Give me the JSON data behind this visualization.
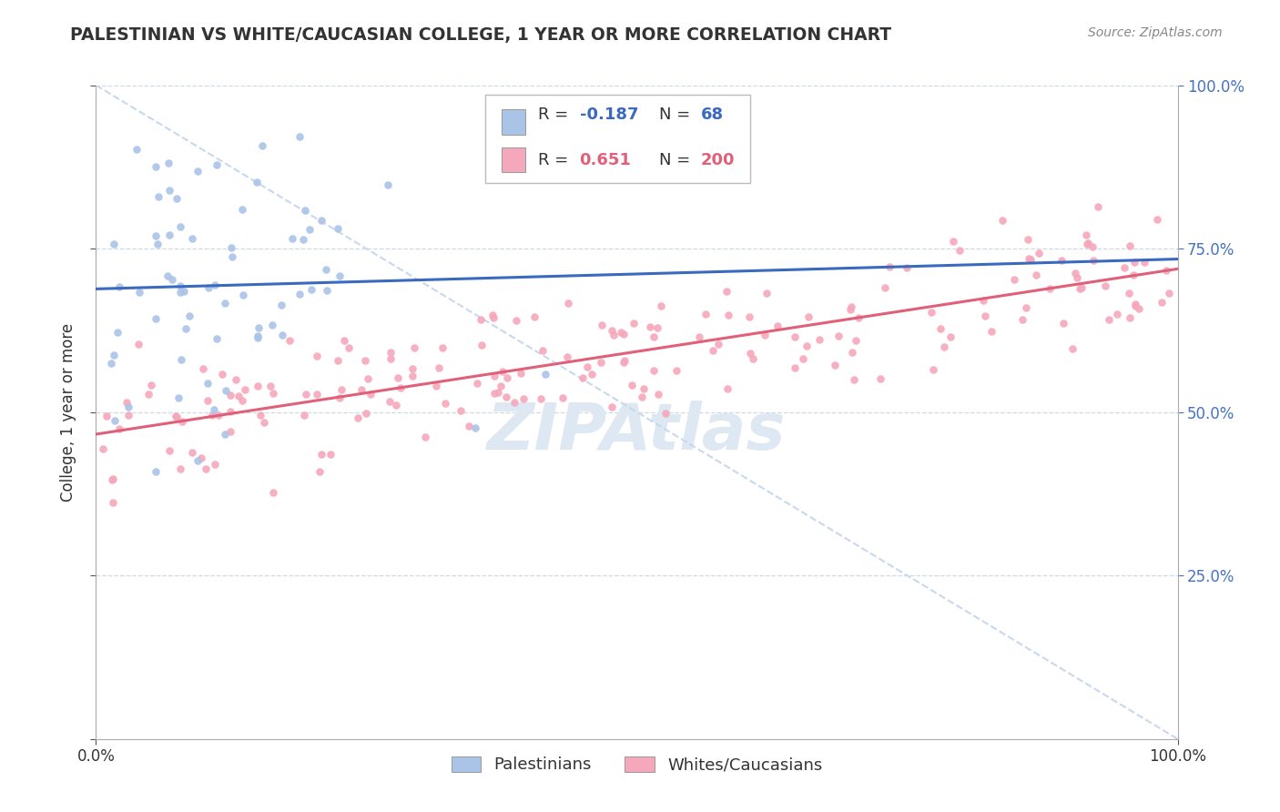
{
  "title": "PALESTINIAN VS WHITE/CAUCASIAN COLLEGE, 1 YEAR OR MORE CORRELATION CHART",
  "source_text": "Source: ZipAtlas.com",
  "ylabel": "College, 1 year or more",
  "legend_r1": "-0.187",
  "legend_n1": "68",
  "legend_r2": "0.651",
  "legend_n2": "200",
  "blue_color": "#aac4e8",
  "pink_color": "#f5a8bc",
  "trend_blue": "#3a6abf",
  "trend_pink": "#e0607a",
  "ref_line_color": "#c8d8ee",
  "background_color": "#ffffff",
  "watermark_color": "#dde8f3",
  "grid_color": "#d0d8e0",
  "text_color": "#333333",
  "right_axis_color": "#4472c4",
  "source_color": "#888888"
}
